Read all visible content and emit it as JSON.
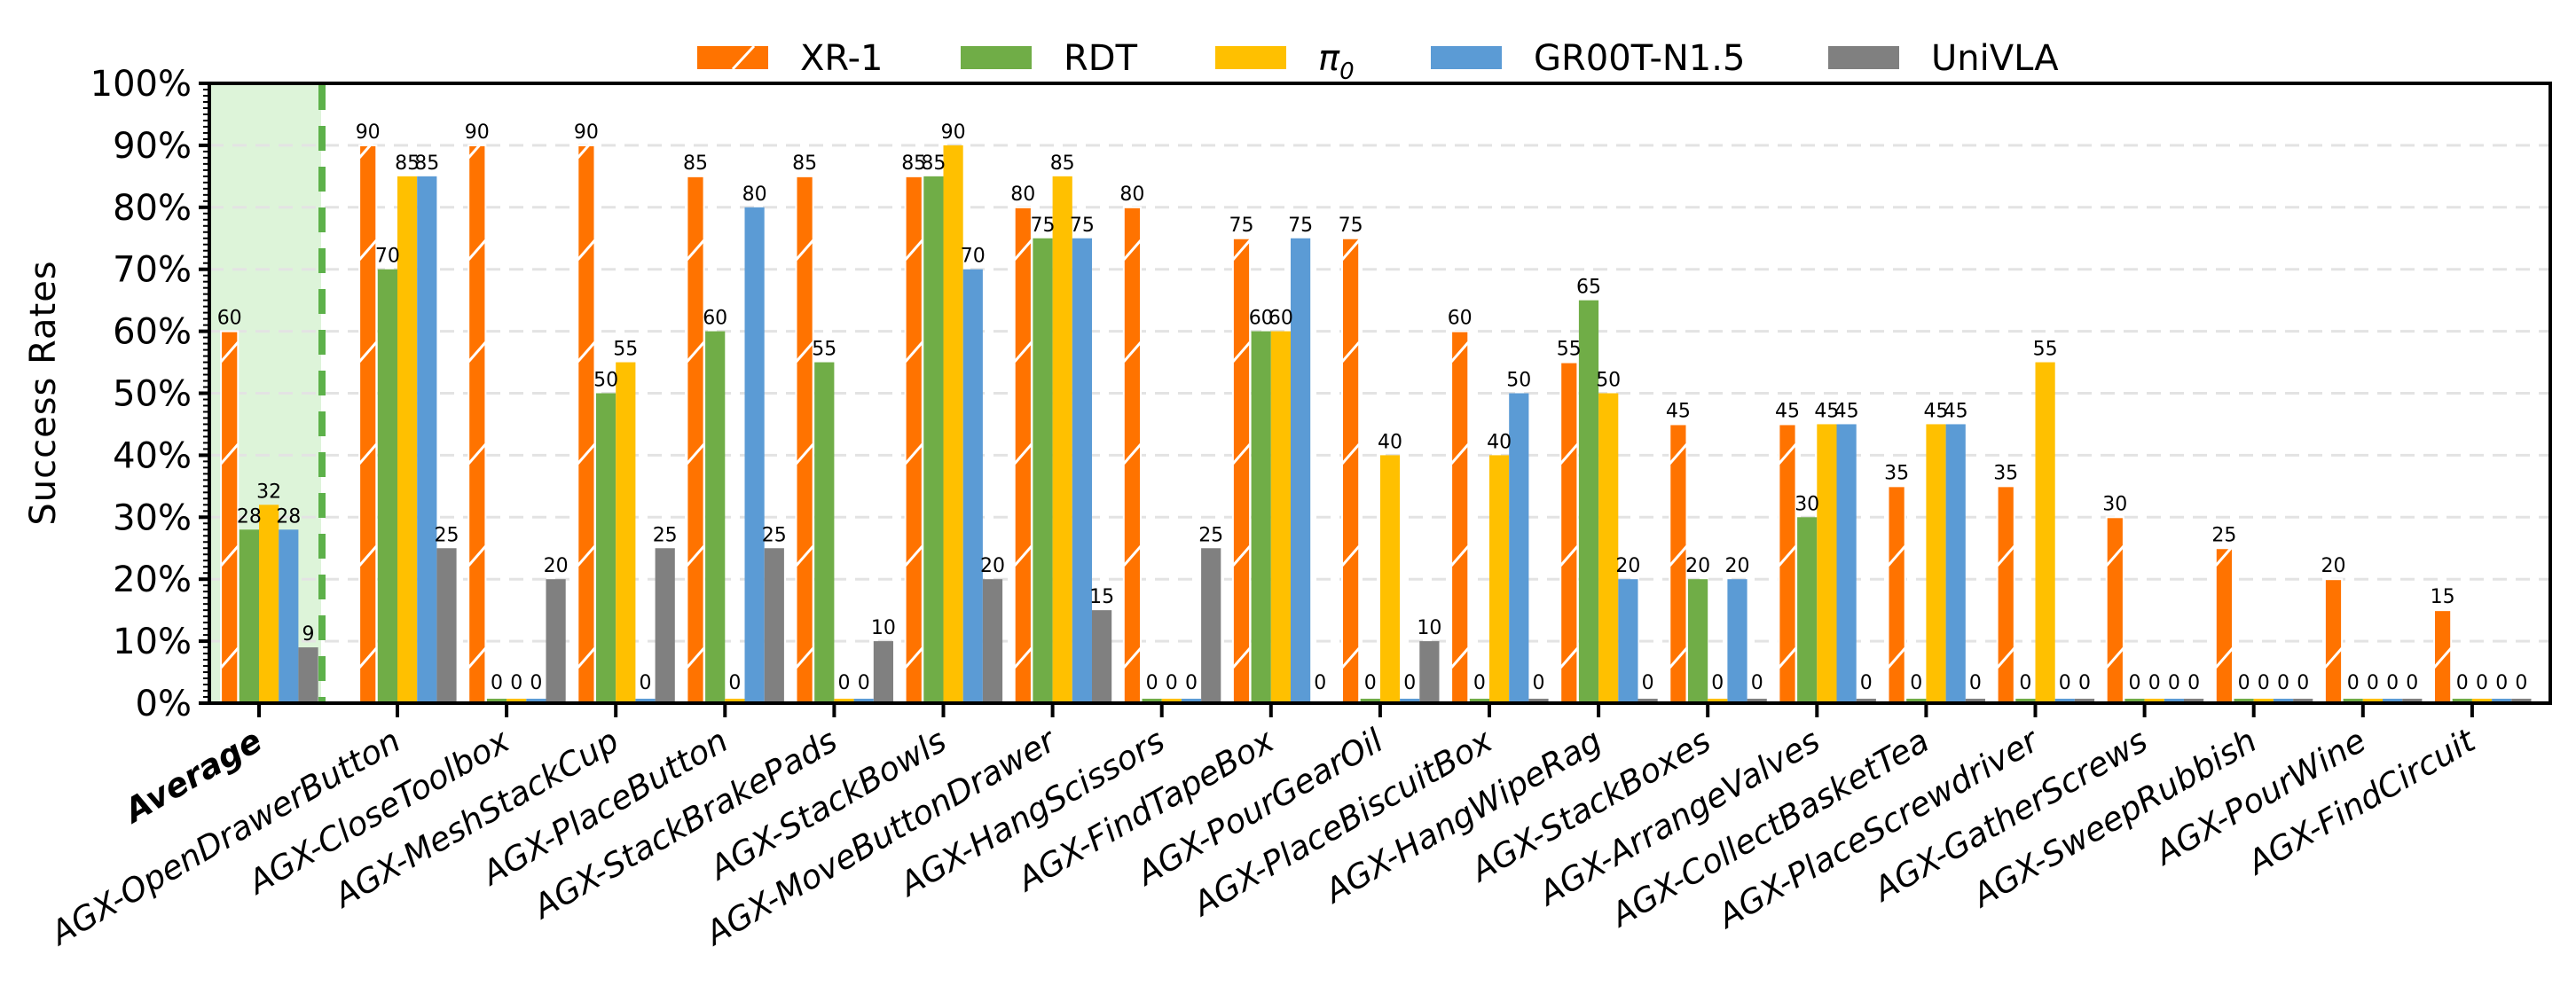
{
  "chart_data": {
    "type": "bar",
    "title": "",
    "xlabel": "",
    "ylabel": "Success Rates",
    "ylim": [
      0,
      100
    ],
    "y_ticks": [
      "0%",
      "10%",
      "20%",
      "30%",
      "40%",
      "50%",
      "60%",
      "70%",
      "80%",
      "90%",
      "100%"
    ],
    "grid": "horizontal-dashed",
    "legend_position": "top-center",
    "highlight": {
      "category": "Average",
      "style": "shaded-green-with-dashed-separator"
    },
    "categories": [
      "Average",
      "AGX-OpenDrawerButton",
      "AGX-CloseToolbox",
      "AGX-MeshStackCup",
      "AGX-PlaceButton",
      "AGX-StackBrakePads",
      "AGX-StackBowls",
      "AGX-MoveButtonDrawer",
      "AGX-HangScissors",
      "AGX-FindTapeBox",
      "AGX-PourGearOil",
      "AGX-PlaceBiscuitBox",
      "AGX-HangWipeRag",
      "AGX-StackBoxes",
      "AGX-ArrangeValves",
      "AGX-CollectBasketTea",
      "AGX-PlaceScrewdriver",
      "AGX-GatherScrews",
      "AGX-SweepRubbish",
      "AGX-PourWine",
      "AGX-FindCircuit"
    ],
    "series": [
      {
        "name": "XR-1",
        "legend_main": "XR-1",
        "legend_sub": "",
        "color": "#FF7300",
        "hatch": "/",
        "values": [
          60,
          90,
          90,
          90,
          85,
          85,
          85,
          80,
          80,
          75,
          75,
          60,
          55,
          45,
          45,
          35,
          35,
          30,
          25,
          20,
          15
        ]
      },
      {
        "name": "RDT",
        "legend_main": "RDT",
        "legend_sub": "",
        "color": "#70AD47",
        "hatch": "",
        "values": [
          28,
          70,
          0,
          50,
          60,
          55,
          85,
          75,
          0,
          60,
          0,
          0,
          65,
          20,
          30,
          0,
          0,
          0,
          0,
          0,
          0
        ]
      },
      {
        "name": "π0",
        "legend_main": "π",
        "legend_sub": "0",
        "color": "#FFC000",
        "hatch": "",
        "values": [
          32,
          85,
          0,
          55,
          0,
          0,
          90,
          85,
          0,
          60,
          40,
          40,
          50,
          0,
          45,
          45,
          55,
          0,
          0,
          0,
          0
        ]
      },
      {
        "name": "GR00T-N1.5",
        "legend_main": "GR00T-N1.5",
        "legend_sub": "",
        "color": "#5B9BD5",
        "hatch": "",
        "values": [
          28,
          85,
          0,
          0,
          80,
          0,
          70,
          75,
          0,
          75,
          0,
          50,
          20,
          20,
          45,
          45,
          0,
          0,
          0,
          0,
          0
        ]
      },
      {
        "name": "UniVLA",
        "legend_main": "UniVLA",
        "legend_sub": "",
        "color": "#808080",
        "hatch": "",
        "values": [
          9,
          25,
          20,
          25,
          25,
          10,
          20,
          15,
          25,
          0,
          10,
          0,
          0,
          0,
          0,
          0,
          0,
          0,
          0,
          0,
          0
        ]
      }
    ],
    "zero_without_bar": [
      [
        "AGX-FindTapeBox",
        "UniVLA"
      ]
    ]
  }
}
